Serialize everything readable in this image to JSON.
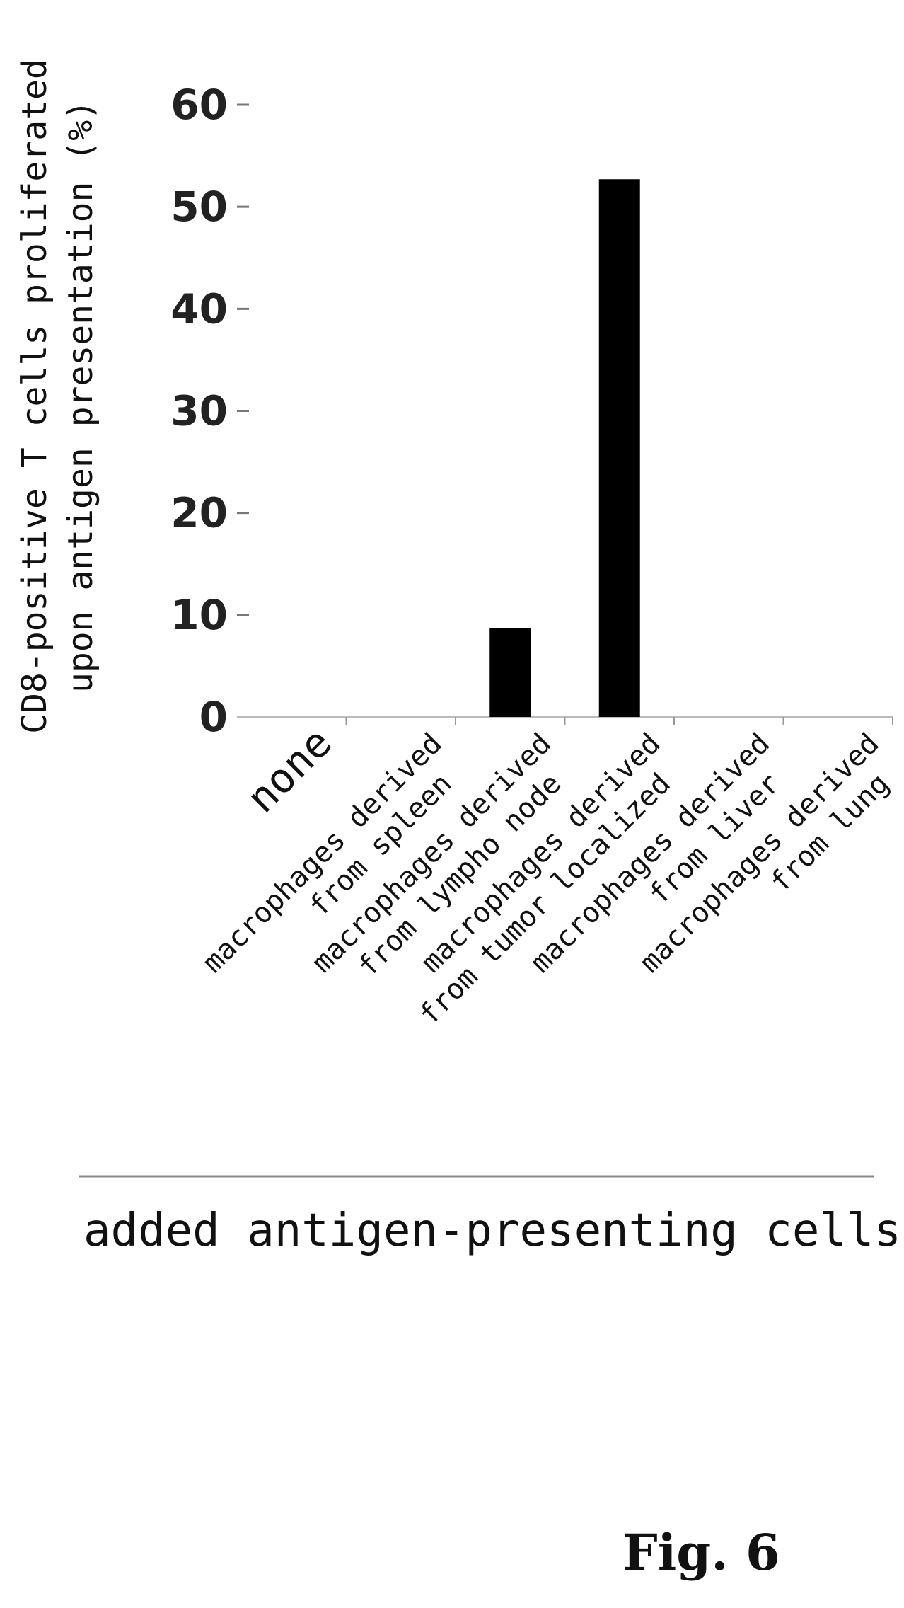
{
  "chart_data": {
    "type": "bar",
    "categories": [
      [
        "none"
      ],
      [
        "macrophages derived",
        "from spleen"
      ],
      [
        "macrophages derived",
        "from lympho node"
      ],
      [
        "macrophages derived",
        "from tumor localized"
      ],
      [
        "macrophages derived",
        "from liver"
      ],
      [
        "macrophages derived",
        "from lung"
      ]
    ],
    "values": [
      0,
      0,
      8.7,
      52.7,
      0,
      0
    ],
    "ylabel": [
      "CD8-positive T cells proliferated",
      "upon antigen presentation (%)"
    ],
    "xlabel": "added antigen-presenting cells",
    "ylim": [
      0,
      60
    ],
    "yticks": [
      0,
      10,
      20,
      30,
      40,
      50,
      60
    ],
    "bar_color": "#000000",
    "grid": false
  },
  "figure_label": "Fig. 6"
}
